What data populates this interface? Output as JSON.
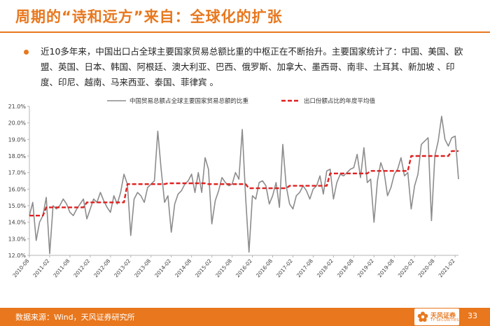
{
  "header": {
    "title": "周期的“诗和远方”来自：全球化的扩张"
  },
  "body": {
    "bullet_text": "近10多年来，中国出口占全球主要国家贸易总额比重的中枢正在不断抬升。主要国家统计了：中国、美国、欧盟、英国、日本、韩国、阿根廷、澳大利亚、巴西、俄罗斯、加拿大、墨西哥、南非、土耳其、新加坡 、印度、印尼、越南、马来西亚、泰国、菲律宾 。"
  },
  "footer": {
    "source": "数据来源：Wind，天风证券研究所",
    "logo_name": "天风证券",
    "logo_sub": "TF SECURITIES",
    "page_number": "33"
  },
  "colors": {
    "accent": "#e8771d",
    "share_line": "#8c8c8c",
    "average_line": "#e02020"
  },
  "chart_data": {
    "type": "line",
    "title": "",
    "xlabel": "",
    "ylabel": "",
    "y_unit": "%",
    "ylim": [
      12.0,
      21.0
    ],
    "y_ticks": [
      12.0,
      13.0,
      14.0,
      15.0,
      16.0,
      17.0,
      18.0,
      19.0,
      20.0,
      21.0
    ],
    "y_tick_labels": [
      "12.0%",
      "13.0%",
      "14.0%",
      "15.0%",
      "16.0%",
      "17.0%",
      "18.0%",
      "19.0%",
      "20.0%",
      "21.0%"
    ],
    "x_start": "2010-08",
    "x_end": "2021-03",
    "x_ticks": [
      "2010-08",
      "2011-02",
      "2011-08",
      "2012-02",
      "2012-08",
      "2013-02",
      "2013-08",
      "2014-02",
      "2014-08",
      "2015-02",
      "2015-08",
      "2016-02",
      "2016-08",
      "2017-02",
      "2017-08",
      "2018-02",
      "2018-08",
      "2019-02",
      "2019-08",
      "2020-02",
      "2020-08",
      "2021-02"
    ],
    "grid": false,
    "legend_position": "top",
    "series": [
      {
        "name": "中国贸易总额占全球主要国家贸易总额的比重",
        "style": "solid",
        "points": [
          [
            "2010-08",
            14.4
          ],
          [
            "2010-09",
            15.2
          ],
          [
            "2010-10",
            12.9
          ],
          [
            "2010-11",
            14.0
          ],
          [
            "2010-12",
            14.4
          ],
          [
            "2011-01",
            15.5
          ],
          [
            "2011-02",
            12.1
          ],
          [
            "2011-03",
            15.0
          ],
          [
            "2011-04",
            14.8
          ],
          [
            "2011-05",
            15.0
          ],
          [
            "2011-06",
            15.4
          ],
          [
            "2011-07",
            15.1
          ],
          [
            "2011-08",
            14.6
          ],
          [
            "2011-09",
            14.4
          ],
          [
            "2011-10",
            14.8
          ],
          [
            "2011-11",
            15.1
          ],
          [
            "2011-12",
            15.4
          ],
          [
            "2012-01",
            14.2
          ],
          [
            "2012-02",
            14.8
          ],
          [
            "2012-03",
            15.4
          ],
          [
            "2012-04",
            15.2
          ],
          [
            "2012-05",
            15.8
          ],
          [
            "2012-06",
            15.3
          ],
          [
            "2012-07",
            14.9
          ],
          [
            "2012-08",
            14.6
          ],
          [
            "2012-09",
            15.6
          ],
          [
            "2012-10",
            15.1
          ],
          [
            "2012-11",
            15.8
          ],
          [
            "2012-12",
            16.9
          ],
          [
            "2013-01",
            16.3
          ],
          [
            "2013-02",
            13.2
          ],
          [
            "2013-03",
            15.4
          ],
          [
            "2013-04",
            15.8
          ],
          [
            "2013-05",
            15.6
          ],
          [
            "2013-06",
            15.2
          ],
          [
            "2013-07",
            16.1
          ],
          [
            "2013-08",
            16.3
          ],
          [
            "2013-09",
            16.5
          ],
          [
            "2013-10",
            19.5
          ],
          [
            "2013-11",
            17.2
          ],
          [
            "2013-12",
            15.2
          ],
          [
            "2014-01",
            15.6
          ],
          [
            "2014-02",
            13.4
          ],
          [
            "2014-03",
            15.1
          ],
          [
            "2014-04",
            15.7
          ],
          [
            "2014-05",
            15.9
          ],
          [
            "2014-06",
            16.3
          ],
          [
            "2014-07",
            16.5
          ],
          [
            "2014-08",
            16.9
          ],
          [
            "2014-09",
            15.8
          ],
          [
            "2014-10",
            17.0
          ],
          [
            "2014-11",
            15.8
          ],
          [
            "2014-12",
            17.9
          ],
          [
            "2015-01",
            17.2
          ],
          [
            "2015-02",
            13.9
          ],
          [
            "2015-03",
            15.3
          ],
          [
            "2015-04",
            15.9
          ],
          [
            "2015-05",
            16.7
          ],
          [
            "2015-06",
            16.4
          ],
          [
            "2015-07",
            16.2
          ],
          [
            "2015-08",
            16.3
          ],
          [
            "2015-09",
            17.0
          ],
          [
            "2015-10",
            16.6
          ],
          [
            "2015-11",
            19.6
          ],
          [
            "2015-12",
            15.5
          ],
          [
            "2016-01",
            12.2
          ],
          [
            "2016-02",
            15.6
          ],
          [
            "2016-03",
            15.4
          ],
          [
            "2016-04",
            16.4
          ],
          [
            "2016-05",
            16.5
          ],
          [
            "2016-06",
            16.2
          ],
          [
            "2016-07",
            15.1
          ],
          [
            "2016-08",
            15.6
          ],
          [
            "2016-09",
            16.4
          ],
          [
            "2016-10",
            14.9
          ],
          [
            "2016-11",
            18.7
          ],
          [
            "2016-12",
            16.2
          ],
          [
            "2017-01",
            15.1
          ],
          [
            "2017-02",
            14.8
          ],
          [
            "2017-03",
            15.6
          ],
          [
            "2017-04",
            15.8
          ],
          [
            "2017-05",
            16.2
          ],
          [
            "2017-06",
            15.9
          ],
          [
            "2017-07",
            15.4
          ],
          [
            "2017-08",
            16.0
          ],
          [
            "2017-09",
            16.2
          ],
          [
            "2017-10",
            16.8
          ],
          [
            "2017-11",
            15.7
          ],
          [
            "2017-12",
            17.1
          ],
          [
            "2018-01",
            17.2
          ],
          [
            "2018-02",
            15.4
          ],
          [
            "2018-03",
            16.4
          ],
          [
            "2018-04",
            16.9
          ],
          [
            "2018-05",
            16.8
          ],
          [
            "2018-06",
            17.0
          ],
          [
            "2018-07",
            17.2
          ],
          [
            "2018-08",
            17.3
          ],
          [
            "2018-09",
            18.1
          ],
          [
            "2018-10",
            16.7
          ],
          [
            "2018-11",
            18.5
          ],
          [
            "2018-12",
            16.4
          ],
          [
            "2019-01",
            16.6
          ],
          [
            "2019-02",
            14.0
          ],
          [
            "2019-03",
            16.5
          ],
          [
            "2019-04",
            17.6
          ],
          [
            "2019-05",
            17.0
          ],
          [
            "2019-06",
            15.6
          ],
          [
            "2019-07",
            16.1
          ],
          [
            "2019-08",
            16.9
          ],
          [
            "2019-09",
            17.2
          ],
          [
            "2019-10",
            17.9
          ],
          [
            "2019-11",
            16.8
          ],
          [
            "2019-12",
            17.0
          ],
          [
            "2020-01",
            14.8
          ],
          [
            "2020-02",
            16.2
          ],
          [
            "2020-03",
            16.9
          ],
          [
            "2020-04",
            18.7
          ],
          [
            "2020-05",
            18.9
          ],
          [
            "2020-06",
            19.1
          ],
          [
            "2020-07",
            14.1
          ],
          [
            "2020-08",
            18.0
          ],
          [
            "2020-09",
            18.9
          ],
          [
            "2020-10",
            20.4
          ],
          [
            "2020-11",
            19.0
          ],
          [
            "2020-12",
            18.6
          ],
          [
            "2021-01",
            19.1
          ],
          [
            "2021-02",
            19.2
          ],
          [
            "2021-03",
            16.6
          ]
        ]
      },
      {
        "name": "出口份额占比的年度平均值",
        "style": "dashed",
        "points": [
          [
            "2010-08",
            14.4
          ],
          [
            "2010-12",
            14.4
          ],
          [
            "2011-01",
            14.9
          ],
          [
            "2011-12",
            14.9
          ],
          [
            "2012-01",
            15.2
          ],
          [
            "2012-12",
            15.2
          ],
          [
            "2013-01",
            16.3
          ],
          [
            "2013-12",
            16.3
          ],
          [
            "2014-01",
            16.35
          ],
          [
            "2014-12",
            16.35
          ],
          [
            "2015-01",
            16.3
          ],
          [
            "2015-12",
            16.3
          ],
          [
            "2016-01",
            16.05
          ],
          [
            "2016-12",
            16.05
          ],
          [
            "2017-01",
            16.2
          ],
          [
            "2017-12",
            16.2
          ],
          [
            "2018-01",
            16.95
          ],
          [
            "2018-12",
            16.95
          ],
          [
            "2019-01",
            17.1
          ],
          [
            "2019-12",
            17.1
          ],
          [
            "2020-01",
            18.0
          ],
          [
            "2020-12",
            18.0
          ],
          [
            "2021-01",
            18.3
          ],
          [
            "2021-03",
            18.3
          ]
        ]
      }
    ]
  }
}
